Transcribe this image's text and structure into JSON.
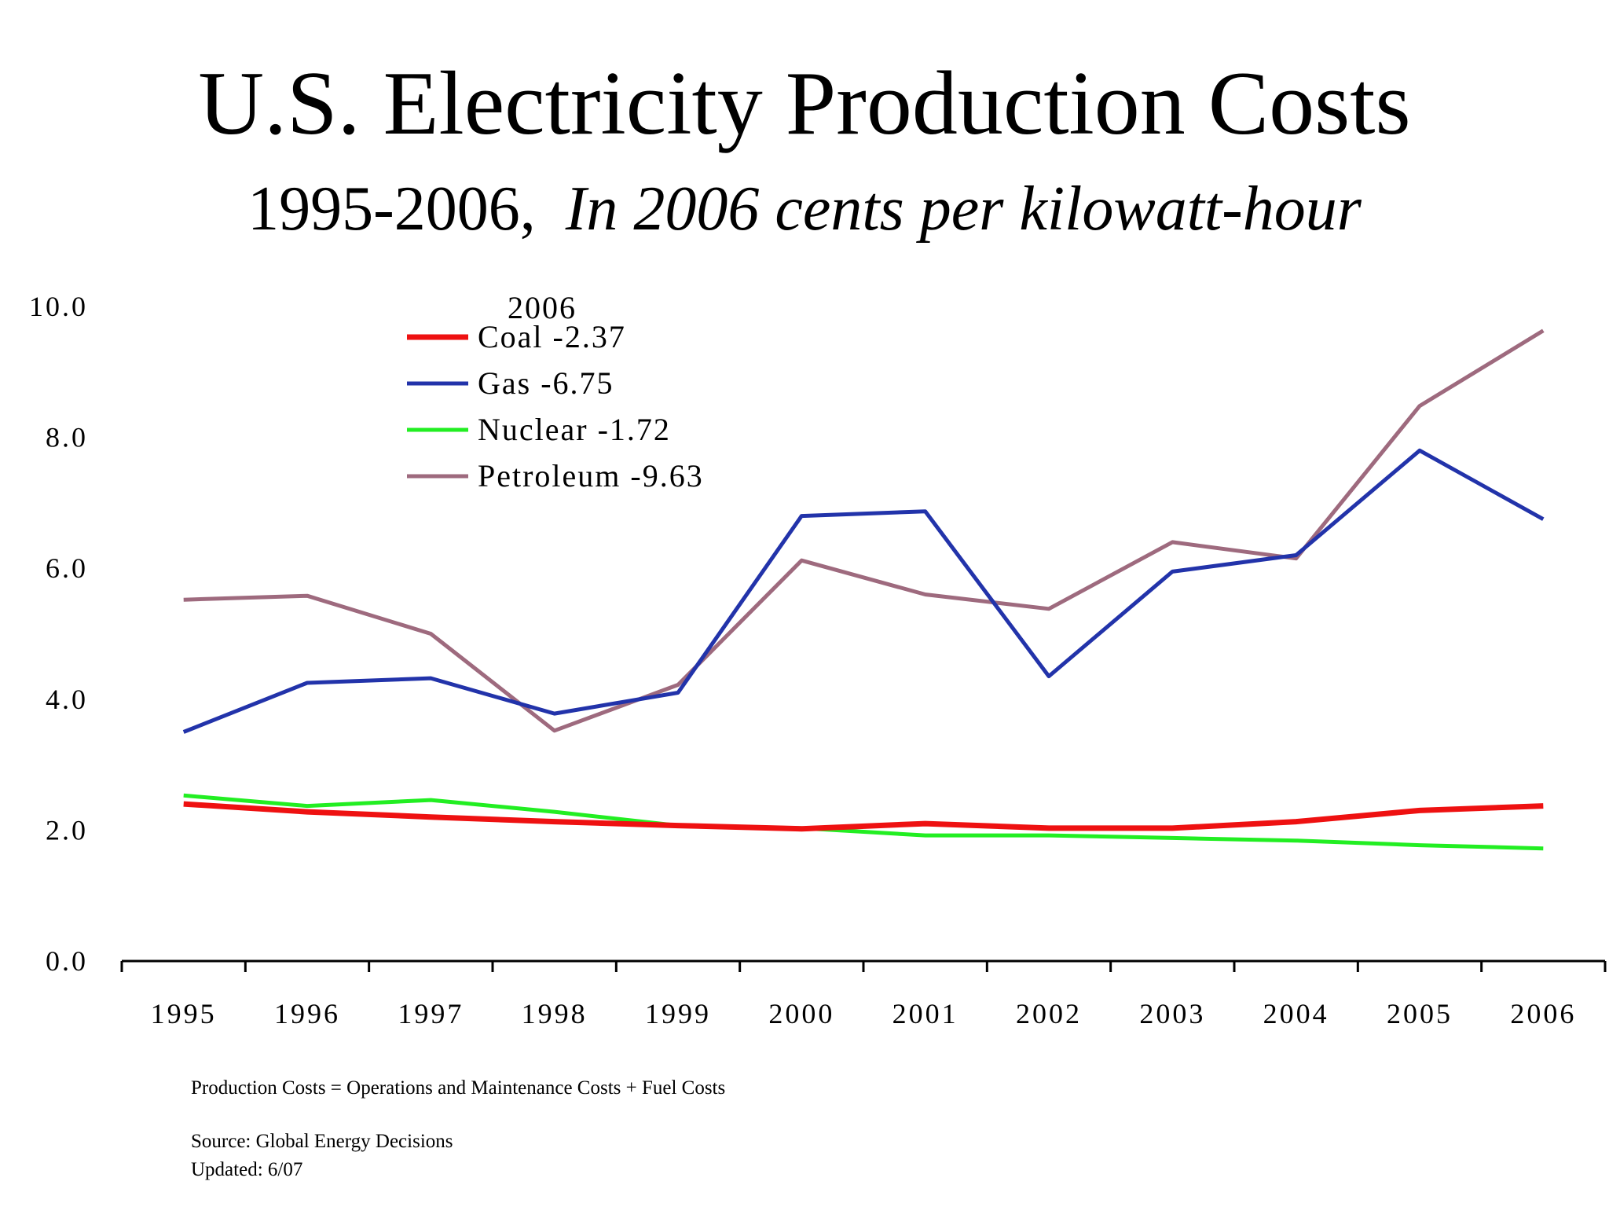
{
  "title": "U.S. Electricity Production Costs",
  "subtitle_plain": "1995-2006,",
  "subtitle_italic": "In 2006 cents per kilowatt-hour",
  "legend_heading": "2006",
  "notes": {
    "formula": "Production Costs = Operations and Maintenance Costs + Fuel Costs",
    "source": "Source: Global Energy Decisions",
    "updated": "Updated: 6/07"
  },
  "chart_data": {
    "type": "line",
    "title": "U.S. Electricity Production Costs",
    "x": [
      "1995",
      "1996",
      "1997",
      "1998",
      "1999",
      "2000",
      "2001",
      "2002",
      "2003",
      "2004",
      "2005",
      "2006"
    ],
    "y_ticks": [
      "0.0",
      "2.0",
      "4.0",
      "6.0",
      "8.0",
      "10.0"
    ],
    "ylim": [
      0,
      10
    ],
    "grid": false,
    "legend_position": "top-left",
    "series": [
      {
        "name": "Coal",
        "legend_label": "Coal -2.37",
        "color": "#ee1111",
        "values": [
          2.4,
          2.28,
          2.2,
          2.13,
          2.07,
          2.02,
          2.1,
          2.03,
          2.03,
          2.13,
          2.3,
          2.37
        ]
      },
      {
        "name": "Gas",
        "legend_label": "Gas -6.75",
        "color": "#2233aa",
        "values": [
          3.5,
          4.25,
          4.32,
          3.78,
          4.1,
          6.8,
          6.87,
          4.35,
          5.95,
          6.2,
          7.8,
          6.75
        ]
      },
      {
        "name": "Nuclear",
        "legend_label": "Nuclear -1.72",
        "color": "#22ee22",
        "values": [
          2.53,
          2.37,
          2.46,
          2.28,
          2.07,
          2.03,
          1.92,
          1.92,
          1.88,
          1.84,
          1.77,
          1.72
        ]
      },
      {
        "name": "Petroleum",
        "legend_label": "Petroleum -9.63",
        "color": "#9e6a7e",
        "values": [
          5.52,
          5.58,
          5.0,
          3.52,
          4.22,
          6.12,
          5.6,
          5.38,
          6.4,
          6.15,
          8.48,
          9.63
        ]
      }
    ]
  }
}
